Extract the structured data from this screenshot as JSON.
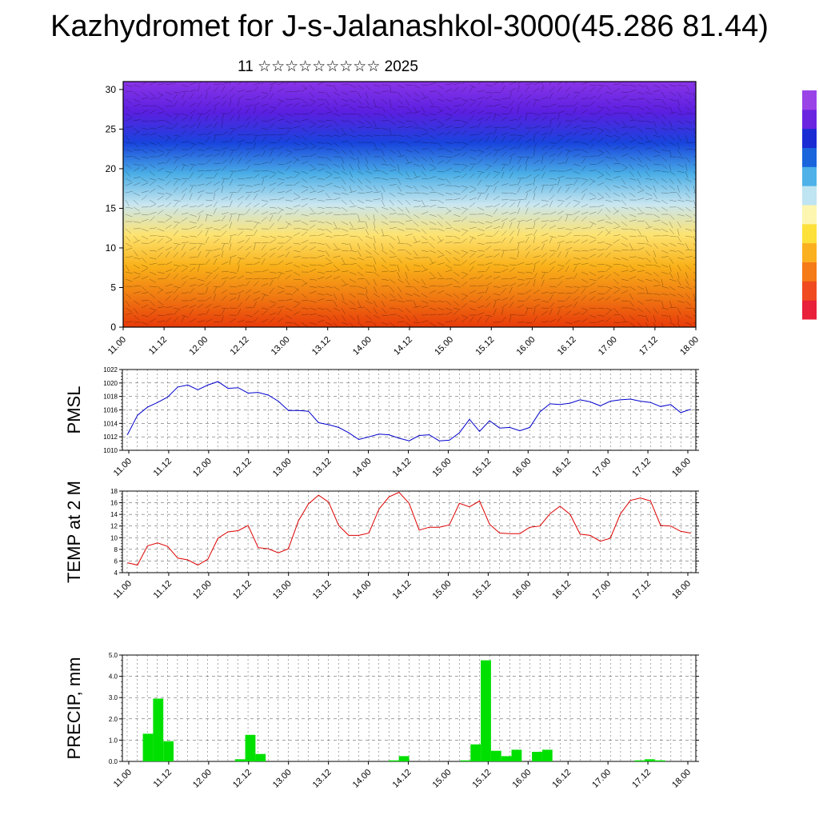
{
  "title": "Kazhydromet for J-s-Jalanashkol-3000(45.286 81.44)",
  "subtitle": "11 ☆☆☆☆☆☆☆☆☆ 2025",
  "x_ticks": [
    "11.00",
    "11.12",
    "12.00",
    "12.12",
    "13.00",
    "13.12",
    "14.00",
    "14.12",
    "15.00",
    "15.12",
    "16.00",
    "16.12",
    "17.00",
    "17.12",
    "18.00"
  ],
  "chart_data": [
    {
      "type": "heatmap",
      "y_ticks": [
        "0",
        "5",
        "10",
        "15",
        "20",
        "25",
        "30"
      ],
      "ylim": [
        0,
        31
      ],
      "color_scale": [
        "#e83a0a",
        "#f07a12",
        "#f9b21a",
        "#fde370",
        "#c9e6f0",
        "#4aaee6",
        "#1844dd",
        "#5a1fe0",
        "#8a35e8"
      ],
      "colorbar_colors": [
        "#e8203a",
        "#f04a20",
        "#f57a18",
        "#fbb020",
        "#fde13a",
        "#fdf6b0",
        "#bfe4f2",
        "#4eb2e8",
        "#1a64dc",
        "#1a2bd4",
        "#6a24e0",
        "#9a44e8"
      ]
    },
    {
      "type": "line",
      "ylabel": "PMSL",
      "ylim": [
        1010,
        1022
      ],
      "y_ticks": [
        "1010",
        "1012",
        "1014",
        "1016",
        "1018",
        "1020",
        "1022"
      ],
      "color": "#0000cc",
      "values": [
        1012.3,
        1015.2,
        1016.4,
        1017.1,
        1017.9,
        1019.4,
        1019.7,
        1019.0,
        1019.7,
        1020.2,
        1019.2,
        1019.3,
        1018.5,
        1018.6,
        1018.2,
        1017.3,
        1015.9,
        1015.9,
        1015.8,
        1014.1,
        1013.8,
        1013.4,
        1012.6,
        1011.6,
        1012.0,
        1012.4,
        1012.3,
        1011.8,
        1011.4,
        1012.2,
        1012.3,
        1011.4,
        1011.5,
        1012.6,
        1014.6,
        1012.8,
        1014.4,
        1013.3,
        1013.4,
        1012.9,
        1013.4,
        1015.7,
        1016.9,
        1016.8,
        1017.0,
        1017.5,
        1017.2,
        1016.6,
        1017.3,
        1017.5,
        1017.6,
        1017.3,
        1017.1,
        1016.5,
        1016.8,
        1015.6,
        1016.1
      ]
    },
    {
      "type": "line",
      "ylabel": "TEMP at 2 M",
      "ylim": [
        4,
        18
      ],
      "y_ticks": [
        "4",
        "6",
        "8",
        "10",
        "12",
        "14",
        "16",
        "18"
      ],
      "color": "#dd0000",
      "values": [
        5.7,
        5.3,
        8.6,
        9.1,
        8.5,
        6.5,
        6.2,
        5.3,
        6.3,
        9.9,
        11.0,
        11.2,
        12.1,
        8.3,
        8.1,
        7.4,
        8.1,
        12.9,
        15.8,
        17.3,
        16.1,
        12.1,
        10.4,
        10.4,
        10.8,
        14.9,
        17.0,
        17.8,
        15.9,
        11.3,
        11.8,
        11.8,
        12.2,
        15.9,
        15.3,
        16.3,
        12.3,
        10.8,
        10.7,
        10.7,
        11.8,
        12.0,
        14.1,
        15.4,
        14.0,
        10.6,
        10.4,
        9.4,
        9.9,
        14.1,
        16.4,
        16.8,
        16.3,
        12.1,
        12.0,
        11.1,
        10.8
      ]
    },
    {
      "type": "bar",
      "ylabel": "PRECIP, mm",
      "ylim": [
        0,
        5
      ],
      "y_ticks": [
        "0.0",
        "1.0",
        "2.0",
        "3.0",
        "4.0",
        "5.0"
      ],
      "color": "#00e000",
      "values": [
        0.0,
        0.0,
        1.3,
        2.95,
        0.95,
        0,
        0,
        0,
        0,
        0,
        0,
        0.1,
        1.25,
        0.35,
        0,
        0,
        0,
        0,
        0,
        0,
        0,
        0,
        0,
        0,
        0,
        0,
        0.05,
        0.25,
        0,
        0,
        0,
        0,
        0,
        0.05,
        0.8,
        4.75,
        0.5,
        0.25,
        0.55,
        0,
        0.45,
        0.55,
        0,
        0,
        0,
        0,
        0,
        0,
        0,
        0,
        0.05,
        0.1,
        0.05,
        0,
        0,
        0
      ]
    }
  ]
}
